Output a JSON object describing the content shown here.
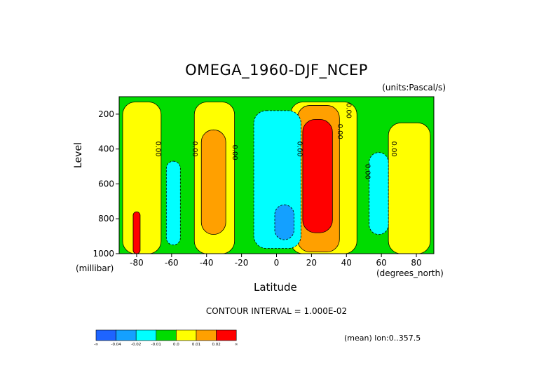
{
  "chart_data": {
    "type": "contour",
    "title": "OMEGA_1960-DJF_NCEP",
    "units": "(units:Pascal/s)",
    "xlabel": "Latitude",
    "x_unit": "(degrees_north)",
    "ylabel": "Level",
    "y_unit": "(millibar)",
    "x_ticks": [
      -80,
      -60,
      -40,
      -20,
      0,
      20,
      40,
      60,
      80
    ],
    "y_ticks": [
      200,
      400,
      600,
      800,
      1000
    ],
    "xlim": [
      -90,
      90
    ],
    "ylim": [
      1000,
      100
    ],
    "contour_interval_text": "CONTOUR INTERVAL = 1.000E-02",
    "footer": "(mean) lon:0..357.5",
    "contour_label": "0.00",
    "colorbar": {
      "colors": [
        "#1e64ff",
        "#14a0ff",
        "#00ffff",
        "#00dc00",
        "#ffff00",
        "#ffa000",
        "#ff0000"
      ],
      "labels": [
        "-∞",
        "-0.04",
        "-0.02",
        "-0.01",
        "0.0",
        "0.01",
        "0.02",
        "∞"
      ]
    },
    "regions": [
      {
        "level": "zero_to_pos01",
        "color": "#ffff00",
        "lat": [
          -88,
          -66
        ],
        "p": [
          130,
          1000
        ]
      },
      {
        "level": "zero_to_pos01",
        "color": "#ffff00",
        "lat": [
          -47,
          -24
        ],
        "p": [
          130,
          1000
        ]
      },
      {
        "level": "zero_to_pos01",
        "color": "#ffff00",
        "lat": [
          8,
          46
        ],
        "p": [
          130,
          1000
        ]
      },
      {
        "level": "zero_to_pos01",
        "color": "#ffff00",
        "lat": [
          64,
          88
        ],
        "p": [
          250,
          1000
        ]
      },
      {
        "level": "pos01_to_pos02",
        "color": "#ffa000",
        "lat": [
          -43,
          -29
        ],
        "p": [
          290,
          890
        ]
      },
      {
        "level": "pos01_to_pos02",
        "color": "#ffa000",
        "lat": [
          12,
          36
        ],
        "p": [
          150,
          990
        ]
      },
      {
        "level": "pos02_up",
        "color": "#ff0000",
        "lat": [
          15,
          32
        ],
        "p": [
          230,
          880
        ]
      },
      {
        "level": "neg02_to_neg01",
        "color": "#00ffff",
        "lat": [
          -13,
          14
        ],
        "p": [
          180,
          970
        ]
      },
      {
        "level": "neg02_to_neg01",
        "color": "#00ffff",
        "lat": [
          -63,
          -55
        ],
        "p": [
          470,
          950
        ]
      },
      {
        "level": "neg02_to_neg01",
        "color": "#00ffff",
        "lat": [
          53,
          64
        ],
        "p": [
          420,
          890
        ]
      },
      {
        "level": "neg04_to_neg02",
        "color": "#14a0ff",
        "lat": [
          -1,
          10
        ],
        "p": [
          720,
          920
        ]
      },
      {
        "level": "pos02_up",
        "color": "#ff0000",
        "lat": [
          -82,
          -78
        ],
        "p": [
          760,
          1000
        ]
      }
    ]
  }
}
